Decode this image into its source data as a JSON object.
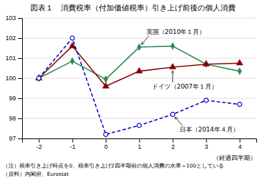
{
  "chart_data": {
    "type": "line",
    "title": "図表１　消費税率（付加価値税率）引き上げ前後の個人消費",
    "xlabel": "（経過四半期）",
    "notes": [
      "（注）税率引き上げ時点を0、税率引き上げ2四半期前の個人消費の水準＝100としている",
      "（資料）内閣府、Eurostat"
    ],
    "x": [
      -2,
      -1,
      0,
      1,
      2,
      3,
      4
    ],
    "series": [
      {
        "name": "英国（2010年１月）",
        "color": "#2e8b57",
        "marker": "diamond",
        "line_style": "solid",
        "values": [
          100.0,
          100.85,
          99.95,
          101.55,
          101.6,
          100.7,
          100.35
        ]
      },
      {
        "name": "ドイツ（2007年１月）",
        "color": "#8b0000",
        "marker": "triangle",
        "line_style": "solid",
        "values": [
          100.0,
          101.6,
          99.6,
          100.35,
          100.55,
          100.7,
          100.75
        ]
      },
      {
        "name": "日本（2014年４月）",
        "color": "#0000cd",
        "marker": "circle-open",
        "line_style": "dashed",
        "values": [
          100.0,
          102.0,
          97.2,
          97.65,
          98.2,
          98.9,
          98.7
        ]
      }
    ],
    "xlim": [
      -2.5,
      4.5
    ],
    "xticks": [
      -2,
      -1,
      0,
      1,
      2,
      3,
      4
    ],
    "ylim": [
      97,
      103
    ],
    "yticks": [
      97,
      98,
      99,
      100,
      101,
      102,
      103
    ],
    "grid": true
  }
}
